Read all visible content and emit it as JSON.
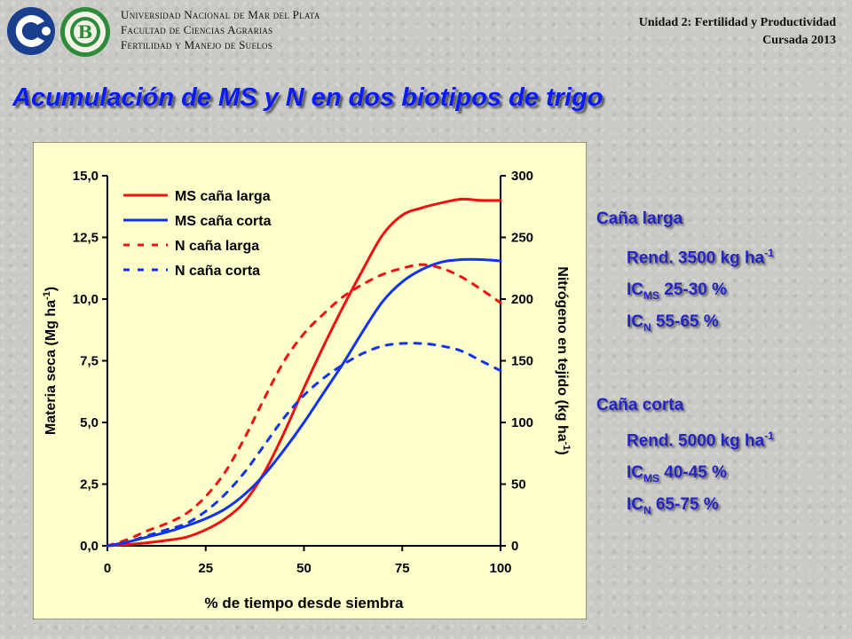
{
  "header": {
    "university": "Universidad Nacional de Mar del Plata",
    "faculty": "Facultad de Ciencias Agrarias",
    "course": "Fertilidad y Manejo de Suelos",
    "unit": "Unidad 2: Fertilidad y Productividad",
    "year": "Cursada 2013"
  },
  "title": "Acumulación de MS y N en dos biotipos de trigo",
  "colors": {
    "title": "#0a1aff",
    "red": "#ee1111",
    "blue": "#1133ee",
    "panel": "#ffffcc"
  },
  "chart_data": {
    "type": "line",
    "xlabel": "% de tiempo desde siembra",
    "ylabel_left": "Materia seca (Mg ha",
    "ylabel_left_exp": "-1",
    "ylabel_left_end": ")",
    "ylabel_right": "Nitrógeno en tejido (kg ha",
    "ylabel_right_exp": "-1",
    "ylabel_right_end": ")",
    "xlim": [
      0,
      100
    ],
    "ylim_left": [
      0,
      15
    ],
    "ylim_right": [
      0,
      300
    ],
    "xticks": [
      "0",
      "25",
      "50",
      "75",
      "100"
    ],
    "yticks_left": [
      "0,0",
      "2,5",
      "5,0",
      "7,5",
      "10,0",
      "12,5",
      "15,0"
    ],
    "yticks_right": [
      "0",
      "50",
      "100",
      "150",
      "200",
      "250",
      "300"
    ],
    "legend_position": "top-left",
    "series": [
      {
        "name": "MS caña larga",
        "axis": "left",
        "style": "solid",
        "color": "#ee1111",
        "x": [
          0,
          5,
          10,
          15,
          20,
          25,
          30,
          35,
          40,
          45,
          50,
          55,
          60,
          65,
          70,
          75,
          80,
          85,
          90,
          95,
          100
        ],
        "y": [
          0,
          0.05,
          0.12,
          0.22,
          0.35,
          0.65,
          1.1,
          1.8,
          3.0,
          4.6,
          6.4,
          8.1,
          9.7,
          11.2,
          12.6,
          13.4,
          13.7,
          13.9,
          14.05,
          14.0,
          14.0
        ]
      },
      {
        "name": "MS caña corta",
        "axis": "left",
        "style": "solid",
        "color": "#1133ee",
        "x": [
          0,
          5,
          10,
          15,
          20,
          25,
          30,
          35,
          40,
          45,
          50,
          55,
          60,
          65,
          70,
          75,
          80,
          85,
          90,
          95,
          100
        ],
        "y": [
          0,
          0.15,
          0.35,
          0.55,
          0.8,
          1.1,
          1.5,
          2.1,
          2.9,
          3.9,
          5.0,
          6.2,
          7.4,
          8.7,
          9.9,
          10.7,
          11.2,
          11.5,
          11.6,
          11.6,
          11.55
        ]
      },
      {
        "name": "N caña larga",
        "axis": "right",
        "style": "dashed",
        "color": "#ee1111",
        "x": [
          0,
          5,
          10,
          15,
          20,
          25,
          30,
          35,
          40,
          45,
          50,
          55,
          60,
          65,
          70,
          75,
          80,
          85,
          90,
          95,
          100
        ],
        "y": [
          0,
          5,
          12,
          18,
          26,
          40,
          60,
          88,
          120,
          150,
          172,
          188,
          202,
          212,
          220,
          225,
          228,
          225,
          218,
          208,
          197
        ]
      },
      {
        "name": "N caña corta",
        "axis": "right",
        "style": "dashed",
        "color": "#1133ee",
        "x": [
          0,
          5,
          10,
          15,
          20,
          25,
          30,
          35,
          40,
          45,
          50,
          55,
          60,
          65,
          70,
          75,
          80,
          85,
          90,
          95,
          100
        ],
        "y": [
          0,
          3,
          8,
          13,
          18,
          28,
          42,
          60,
          82,
          104,
          122,
          136,
          147,
          156,
          162,
          164,
          164,
          162,
          158,
          150,
          142
        ]
      }
    ]
  },
  "notes": {
    "long": {
      "title": "Caña larga",
      "rend": "Rend. 3500 kg ha",
      "rend_exp": "-1",
      "ic_ms": "IC",
      "ic_ms_sub": "MS",
      "ic_ms_val": " 25-30 %",
      "ic_n": "IC",
      "ic_n_sub": "N",
      "ic_n_val": " 55-65 %"
    },
    "short": {
      "title": "Caña corta",
      "rend": "Rend. 5000 kg ha",
      "rend_exp": "-1",
      "ic_ms": "IC",
      "ic_ms_sub": "MS",
      "ic_ms_val": " 40-45 %",
      "ic_n": "IC",
      "ic_n_sub": "N",
      "ic_n_val": " 65-75 %"
    }
  }
}
